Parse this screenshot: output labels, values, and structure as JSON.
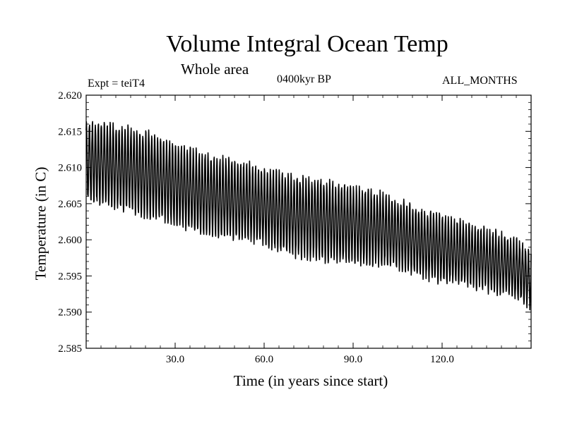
{
  "header": {
    "title": "Volume Integral Ocean Temp",
    "subtitle": "Whole area",
    "experiment": "Expt = teiT4",
    "period": "0400kyr BP",
    "months": "ALL_MONTHS"
  },
  "chart_data": {
    "type": "line",
    "title": "Volume Integral Ocean Temp",
    "subtitle": "Whole area",
    "xlabel": "Time (in years since start)",
    "ylabel": "Temperature (in C)",
    "xlim": [
      0,
      150
    ],
    "ylim": [
      2.585,
      2.62
    ],
    "x_ticks": [
      30,
      60,
      90,
      120
    ],
    "x_tick_labels": [
      "30.0",
      "60.0",
      "90.0",
      "120.0"
    ],
    "y_ticks": [
      2.585,
      2.59,
      2.595,
      2.6,
      2.605,
      2.61,
      2.615,
      2.62
    ],
    "y_tick_labels": [
      "2.585",
      "2.590",
      "2.595",
      "2.600",
      "2.605",
      "2.610",
      "2.615",
      "2.620"
    ],
    "grid": false,
    "sampling": "monthly, 12 samples per year",
    "series": [
      {
        "name": "Volume integral ocean temperature",
        "description": "Seasonal cycle (annual oscillation) superimposed on a declining trend",
        "mean_trend": {
          "x": [
            0,
            10,
            25,
            40,
            55,
            70,
            85,
            100,
            115,
            130,
            145,
            150
          ],
          "y": [
            2.611,
            2.6102,
            2.6085,
            2.6063,
            2.6052,
            2.6033,
            2.6024,
            2.6015,
            2.5993,
            2.5978,
            2.5961,
            2.5945
          ]
        },
        "annual_amplitude": {
          "x": [
            0,
            20,
            40,
            60,
            80,
            100,
            120,
            150
          ],
          "y": [
            0.0053,
            0.0058,
            0.0054,
            0.0052,
            0.0055,
            0.0048,
            0.0045,
            0.0038
          ]
        }
      }
    ]
  }
}
